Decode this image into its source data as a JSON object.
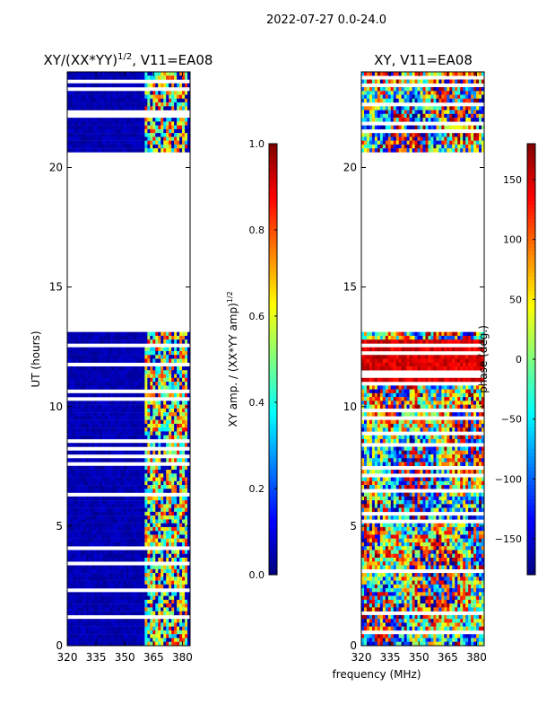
{
  "figure_title": "2022-07-27 0.0-24.0",
  "xlabel_shared": "frequency (MHz)",
  "colors": {
    "jet": [
      "#00007f",
      "#0000ff",
      "#007fff",
      "#00ffff",
      "#7fff7f",
      "#ffff00",
      "#ff7f00",
      "#ff0000",
      "#7f0000"
    ],
    "frame": "#000000",
    "blank": "#ffffff"
  },
  "chart_data": [
    {
      "type": "heatmap",
      "title_main": "XY/(XX*YY)",
      "title_sup": "1/2",
      "title_tail": ", V11=EA08",
      "xlabel": "",
      "ylabel": "UT (hours)",
      "xlim": [
        320,
        384
      ],
      "ylim": [
        0,
        24
      ],
      "xticks": [
        320,
        335,
        350,
        365,
        380
      ],
      "yticks": [
        0,
        5,
        10,
        15,
        20
      ],
      "gap_hours": [
        13.1,
        20.7
      ],
      "colorbar": {
        "label_main": "XY amp. / (XX*YY amp)",
        "label_sup": "1/2",
        "ticks": [
          0.0,
          0.2,
          0.4,
          0.6,
          0.8,
          1.0
        ],
        "tick_labels": [
          "0.0",
          "0.2",
          "0.4",
          "0.6",
          "0.8",
          "1.0"
        ],
        "range": [
          0,
          1
        ]
      }
    },
    {
      "type": "heatmap",
      "title_main": "XY, V11=EA08",
      "xlabel": "frequency (MHz)",
      "ylabel": "",
      "xlim": [
        320,
        384
      ],
      "ylim": [
        0,
        24
      ],
      "xticks": [
        320,
        335,
        350,
        365,
        380
      ],
      "yticks": [
        0,
        5,
        10,
        15,
        20
      ],
      "gap_hours": [
        13.1,
        20.7
      ],
      "colorbar": {
        "label_main": "phase (deg.)",
        "ticks": [
          -150,
          -100,
          -50,
          0,
          50,
          100,
          150
        ],
        "tick_labels": [
          "−150",
          "−100",
          "−50",
          "0",
          "50",
          "100",
          "150"
        ],
        "range": [
          -180,
          180
        ]
      }
    }
  ]
}
